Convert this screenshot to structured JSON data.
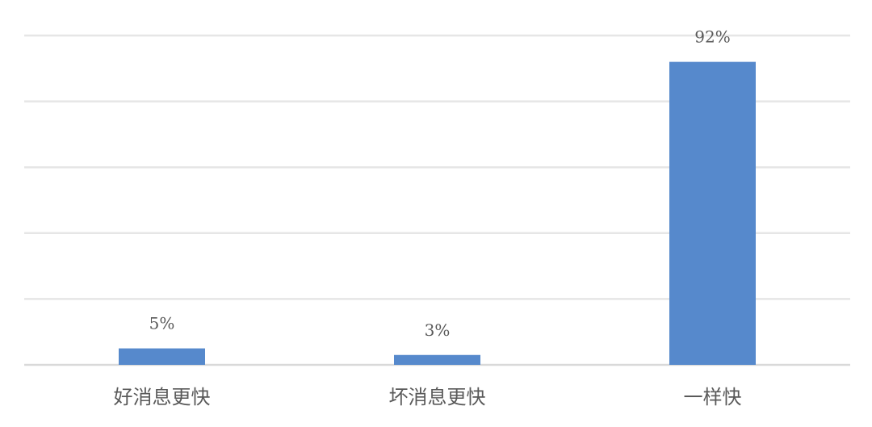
{
  "chart_data": {
    "type": "bar",
    "title": "",
    "xlabel": "",
    "ylabel": "",
    "categories": [
      "好消息更快",
      "坏消息更快",
      "一样快"
    ],
    "values": [
      5,
      3,
      92
    ],
    "data_labels": [
      "5%",
      "3%",
      "92%"
    ],
    "unit": "%",
    "ylim": [
      0,
      100
    ],
    "y_gridlines": [
      0,
      20,
      40,
      60,
      80,
      100
    ],
    "y_tick_labels_shown": false,
    "grid": true,
    "legend": "none",
    "colors": {
      "bar": "#5689CC",
      "grid": "#E6E6E6",
      "text": "#595959"
    }
  }
}
